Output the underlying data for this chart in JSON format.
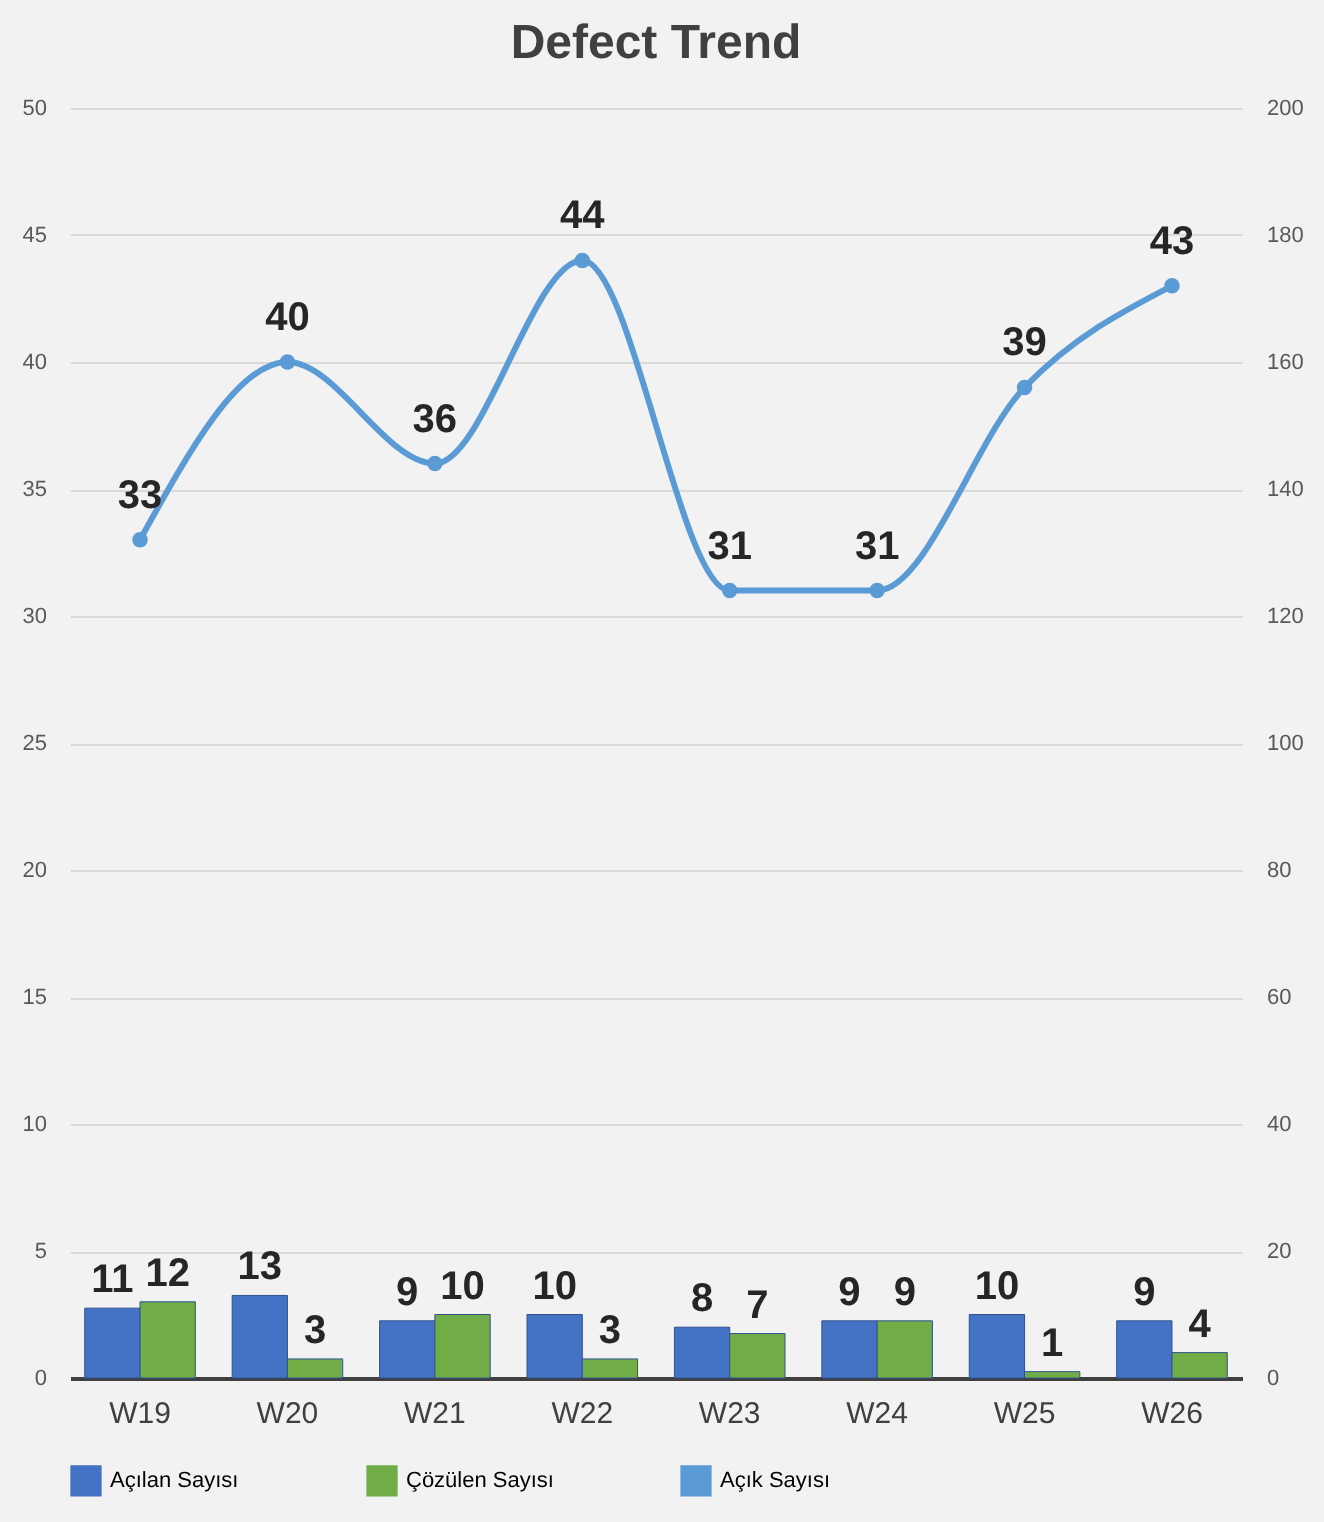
{
  "chart_data": {
    "type": "bar",
    "title": "Defect Trend",
    "categories": [
      "W19",
      "W20",
      "W21",
      "W22",
      "W23",
      "W24",
      "W25",
      "W26"
    ],
    "series": [
      {
        "name": "Açılan Sayısı",
        "axis": "y2",
        "color": "#4472c4",
        "values": [
          11,
          13,
          9,
          10,
          8,
          9,
          10,
          9
        ]
      },
      {
        "name": "Çözülen Sayısı",
        "axis": "y2",
        "color": "#70ad47",
        "values": [
          12,
          3,
          10,
          3,
          7,
          9,
          1,
          4
        ]
      },
      {
        "name": "Açık Sayısı",
        "type": "line",
        "axis": "y",
        "color": "#5b9bd5",
        "marker": "circle",
        "values": [
          33,
          40,
          36,
          44,
          31,
          31,
          39,
          43
        ]
      }
    ],
    "ylim": [
      0,
      50
    ],
    "yticks": [
      0,
      5,
      10,
      15,
      20,
      25,
      30,
      35,
      40,
      45,
      50
    ],
    "y2lim": [
      0,
      200
    ],
    "y2ticks": [
      0,
      20,
      40,
      60,
      80,
      100,
      120,
      140,
      160,
      180,
      200
    ],
    "data_labels": true,
    "grid": "y",
    "legend": "bottom"
  }
}
